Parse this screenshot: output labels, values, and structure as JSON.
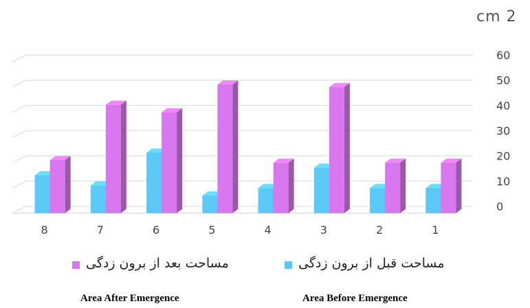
{
  "chart_data": {
    "type": "bar",
    "unit_label": "cm 2",
    "categories": [
      "8",
      "7",
      "6",
      "5",
      "4",
      "3",
      "2",
      "1"
    ],
    "yticks": [
      "0",
      "10",
      "20",
      "30",
      "40",
      "50",
      "60"
    ],
    "ylim": [
      0,
      60
    ],
    "grid": true,
    "axis_side": "right",
    "series": [
      {
        "name": "مساحت قبل از برون زدگی",
        "color": "#5bc8f5",
        "values": [
          15,
          11,
          24,
          7,
          10,
          18,
          10,
          10
        ]
      },
      {
        "name": "مساحت بعد از برون زدگی",
        "color": "#d977ee",
        "values": [
          21,
          43,
          40,
          51,
          20,
          50,
          20,
          20
        ]
      }
    ],
    "legend": {
      "after_fa": "مساحت بعد از برون زدگی",
      "before_fa": "مساحت قبل از برون زدگی",
      "after_en": "Area After Emergence",
      "before_en": "Area Before Emergence"
    }
  }
}
